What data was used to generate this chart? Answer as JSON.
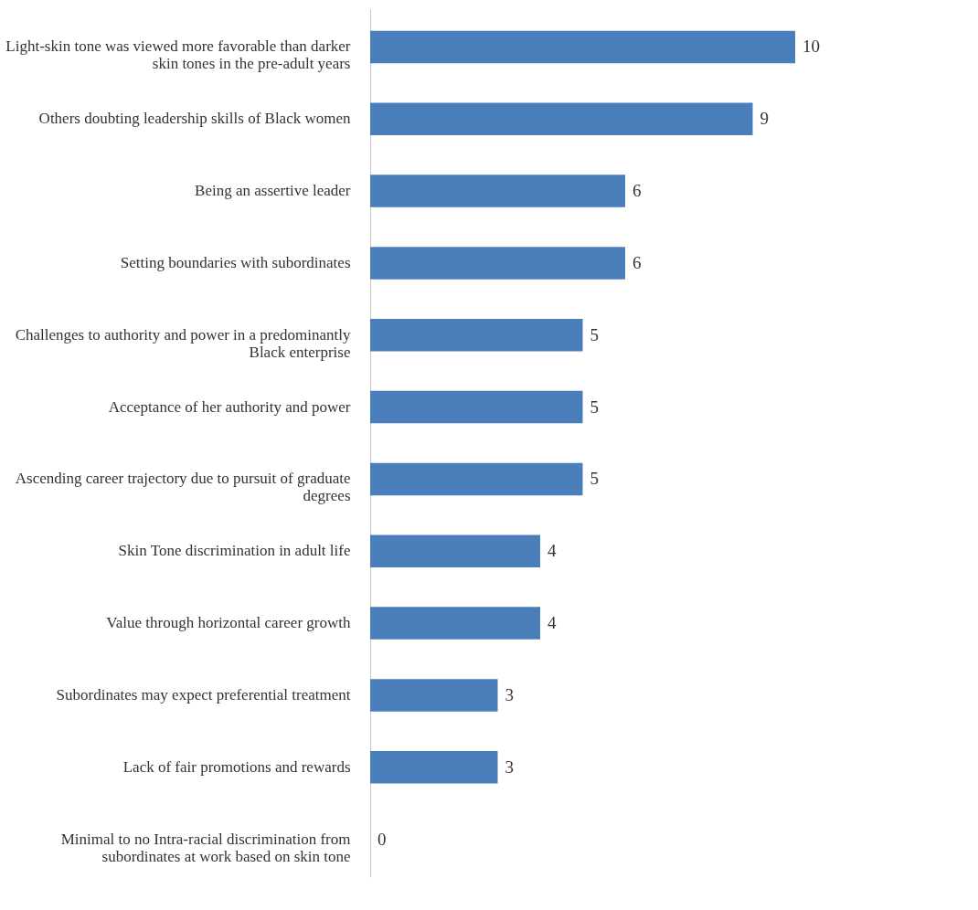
{
  "chart_data": {
    "type": "bar",
    "orientation": "horizontal",
    "data_labels": true,
    "grid": false,
    "tick_labels": "y",
    "categories": [
      "Light-skin tone was viewed more favorable than darker skin tones in the pre-adult years",
      "Others doubting leadership skills of Black women",
      "Being an assertive leader",
      "Setting boundaries with subordinates",
      "Challenges to authority and power in a predominantly Black enterprise",
      "Acceptance of her authority and power",
      "Ascending career trajectory due to pursuit of graduate degrees",
      "Skin Tone discrimination in adult life",
      "Value through horizontal career growth",
      "Subordinates may expect preferential treatment",
      "Lack of fair promotions and rewards",
      "Minimal to no Intra-racial discrimination from subordinates at work based on skin tone"
    ],
    "values": [
      10,
      9,
      6,
      6,
      5,
      5,
      5,
      4,
      4,
      3,
      3,
      0
    ],
    "color": "#4a7ebb"
  }
}
